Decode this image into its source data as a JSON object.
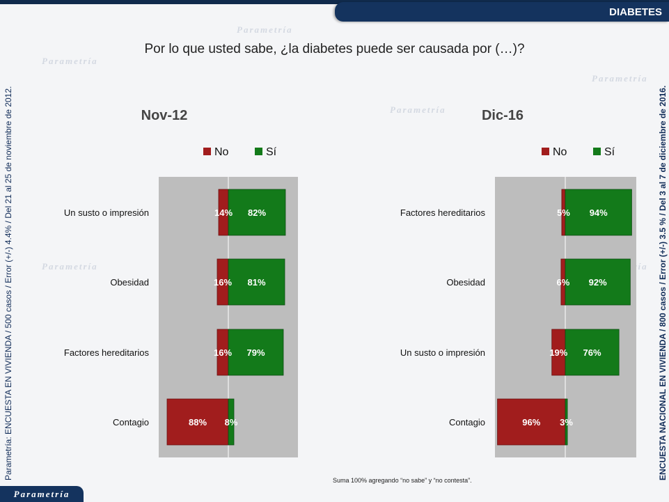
{
  "header": {
    "tag": "DIABETES"
  },
  "question": "Por lo que usted sabe, ¿la diabetes puede ser causada por (…)?",
  "side_note_left": "Parametría: ENCUESTA EN VIVIENDA / 500 casos / Error (+/-) 4.4% / Del 21 al 25 de noviembre de 2012.",
  "side_note_right": "ENCUESTA NACIONAL EN VIVIENDA / 800 casos / Error (+/-) 3.5 % / Del 3 al 7 de diciembre de 2016.",
  "footnote": "Suma 100%  agregando “no sabe” y “no contesta”.",
  "logo": "Parametría",
  "colors": {
    "no": "#a11d1d",
    "si": "#137a1a",
    "plot_bg": "#bdbdbd"
  },
  "chart_data": [
    {
      "type": "bar",
      "orientation": "horizontal-diverging",
      "title": "Nov-12",
      "categories": [
        "Un susto o impresión",
        "Obesidad",
        "Factores hereditarios",
        "Contagio"
      ],
      "series": [
        {
          "name": "No",
          "values": [
            14,
            16,
            16,
            88
          ]
        },
        {
          "name": "Sí",
          "values": [
            82,
            81,
            79,
            8
          ]
        }
      ],
      "value_suffix": "%",
      "xlim": [
        -100,
        100
      ],
      "legend_position": "top"
    },
    {
      "type": "bar",
      "orientation": "horizontal-diverging",
      "title": "Dic-16",
      "categories": [
        "Factores hereditarios",
        "Obesidad",
        "Un susto o impresión",
        "Contagio"
      ],
      "series": [
        {
          "name": "No",
          "values": [
            5,
            6,
            19,
            96
          ]
        },
        {
          "name": "Sí",
          "values": [
            94,
            92,
            76,
            3
          ]
        }
      ],
      "value_suffix": "%",
      "xlim": [
        -100,
        100
      ],
      "legend_position": "top"
    }
  ]
}
